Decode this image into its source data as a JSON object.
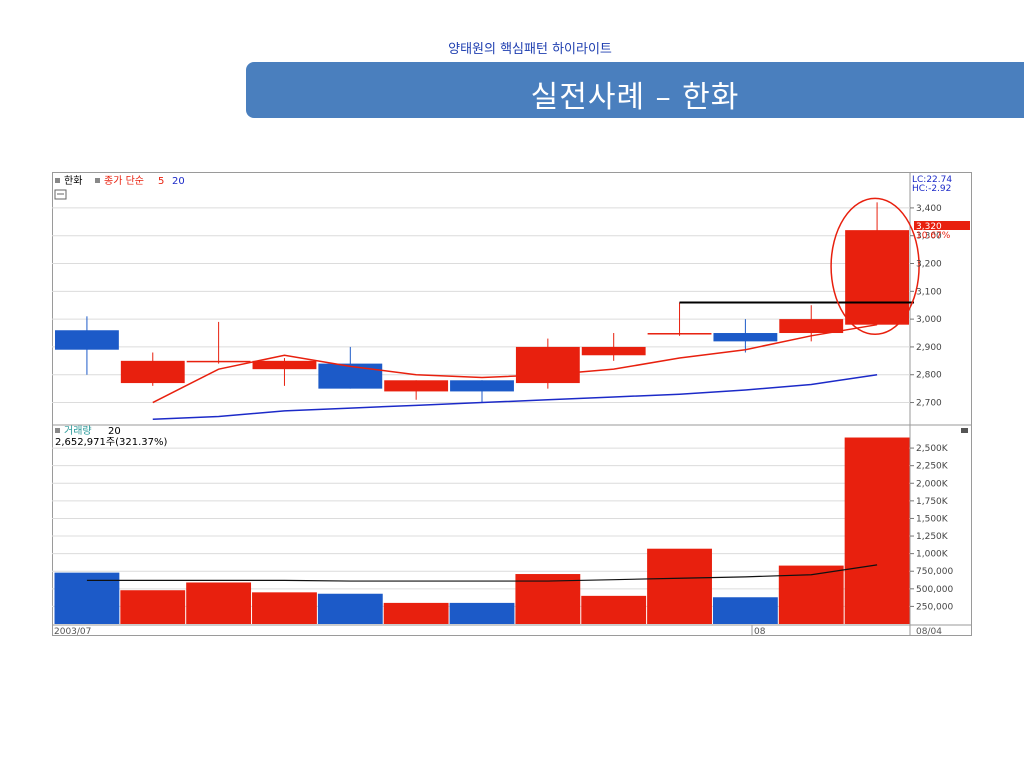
{
  "slide": {
    "subtitle": "양태원의 핵심패턴 하이라이트",
    "title": "실전사례 – 한화"
  },
  "chart_data": [
    {
      "type": "candlestick",
      "header": {
        "name": "한화",
        "ma_label": "종가 단순",
        "ma1": "5",
        "ma2": "20"
      },
      "right_labels": {
        "lc": "LC:22.74",
        "hc": "HC:-2.92",
        "last_price": "3,320",
        "last_change": "10.67%"
      },
      "y_ticks": [
        "3,400",
        "3,300",
        "3,200",
        "3,100",
        "3,000",
        "2,900",
        "2,800",
        "2,700"
      ],
      "ylim": [
        2630,
        3450
      ],
      "candles": [
        {
          "open": 2960,
          "close": 2890,
          "high": 3010,
          "low": 2800,
          "color": "blue"
        },
        {
          "open": 2770,
          "close": 2850,
          "high": 2880,
          "low": 2760,
          "color": "red"
        },
        {
          "open": 2850,
          "close": 2850,
          "high": 2990,
          "low": 2840,
          "color": "red"
        },
        {
          "open": 2850,
          "close": 2820,
          "high": 2860,
          "low": 2760,
          "color": "red"
        },
        {
          "open": 2840,
          "close": 2750,
          "high": 2900,
          "low": 2750,
          "color": "blue"
        },
        {
          "open": 2740,
          "close": 2780,
          "high": 2780,
          "low": 2710,
          "color": "red"
        },
        {
          "open": 2780,
          "close": 2740,
          "high": 2780,
          "low": 2700,
          "color": "blue"
        },
        {
          "open": 2770,
          "close": 2900,
          "high": 2930,
          "low": 2750,
          "color": "red"
        },
        {
          "open": 2870,
          "close": 2900,
          "high": 2950,
          "low": 2850,
          "color": "red"
        },
        {
          "open": 2950,
          "close": 2950,
          "high": 3060,
          "low": 2940,
          "color": "red"
        },
        {
          "open": 2950,
          "close": 2920,
          "high": 3000,
          "low": 2880,
          "color": "blue"
        },
        {
          "open": 2950,
          "close": 3000,
          "high": 3050,
          "low": 2920,
          "color": "red"
        },
        {
          "open": 2980,
          "close": 3320,
          "high": 3420,
          "low": 2980,
          "color": "red"
        }
      ],
      "ma5": [
        null,
        2700,
        2820,
        2870,
        2830,
        2800,
        2790,
        2800,
        2820,
        2860,
        2890,
        2940,
        2980
      ],
      "ma20": [
        null,
        2640,
        2650,
        2670,
        2680,
        2690,
        2700,
        2710,
        2720,
        2730,
        2745,
        2765,
        2800
      ],
      "resistance_level": 3060,
      "colors": {
        "up": "#e8200e",
        "down": "#1c5ac8",
        "ma5": "#e8200e",
        "ma20": "#1c2ac8",
        "resistance": "#000000",
        "circle": "#e8200e"
      }
    },
    {
      "type": "bar",
      "header": {
        "label": "거래량",
        "period": "20",
        "info": "2,652,971주(321.37%)"
      },
      "y_ticks": [
        "2,500K",
        "2,250K",
        "2,000K",
        "1,750K",
        "1,500K",
        "1,250K",
        "1,000K",
        "750,000",
        "500,000",
        "250,000"
      ],
      "ylim": [
        0,
        2700000
      ],
      "values": [
        730000,
        480000,
        590000,
        450000,
        430000,
        300000,
        300000,
        710000,
        400000,
        1070000,
        380000,
        830000,
        2650000
      ],
      "colors": [
        "blue",
        "red",
        "red",
        "red",
        "blue",
        "red",
        "blue",
        "red",
        "red",
        "red",
        "blue",
        "red",
        "red"
      ],
      "ma20": [
        620000,
        620000,
        620000,
        620000,
        610000,
        610000,
        610000,
        610000,
        630000,
        650000,
        670000,
        700000,
        840000
      ],
      "x_labels": {
        "start": "2003/07",
        "mid": "08",
        "end": "08/04"
      }
    }
  ]
}
